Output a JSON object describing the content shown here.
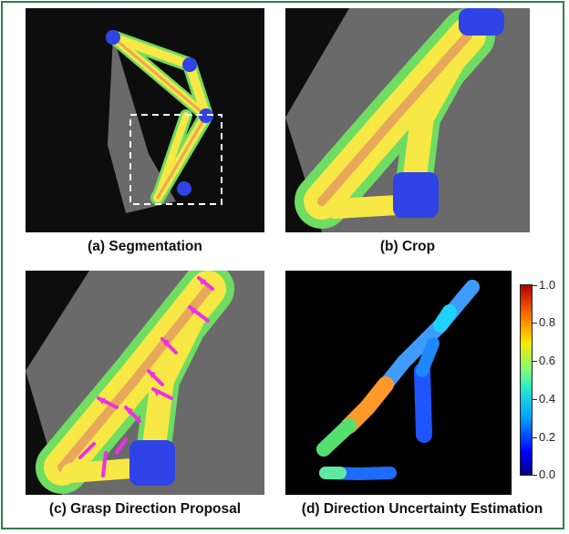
{
  "captions": {
    "a": "(a) Segmentation",
    "b": "(b) Crop",
    "c": "(c) Grasp Direction Proposal",
    "d": "(d) Direction Uncertainty Estimation"
  },
  "colorbar": {
    "ticks": [
      "1.0",
      "0.8",
      "0.6",
      "0.4",
      "0.2",
      "0.0"
    ],
    "colormap": "jet"
  },
  "colors": {
    "segment_yellow": "#f7e845",
    "segment_green": "#6fdc62",
    "segment_orange": "#e7a85a",
    "node_blue": "#2f43e6",
    "arrow_magenta": "#ef2fe8",
    "frame_border": "#2e7d4f"
  }
}
